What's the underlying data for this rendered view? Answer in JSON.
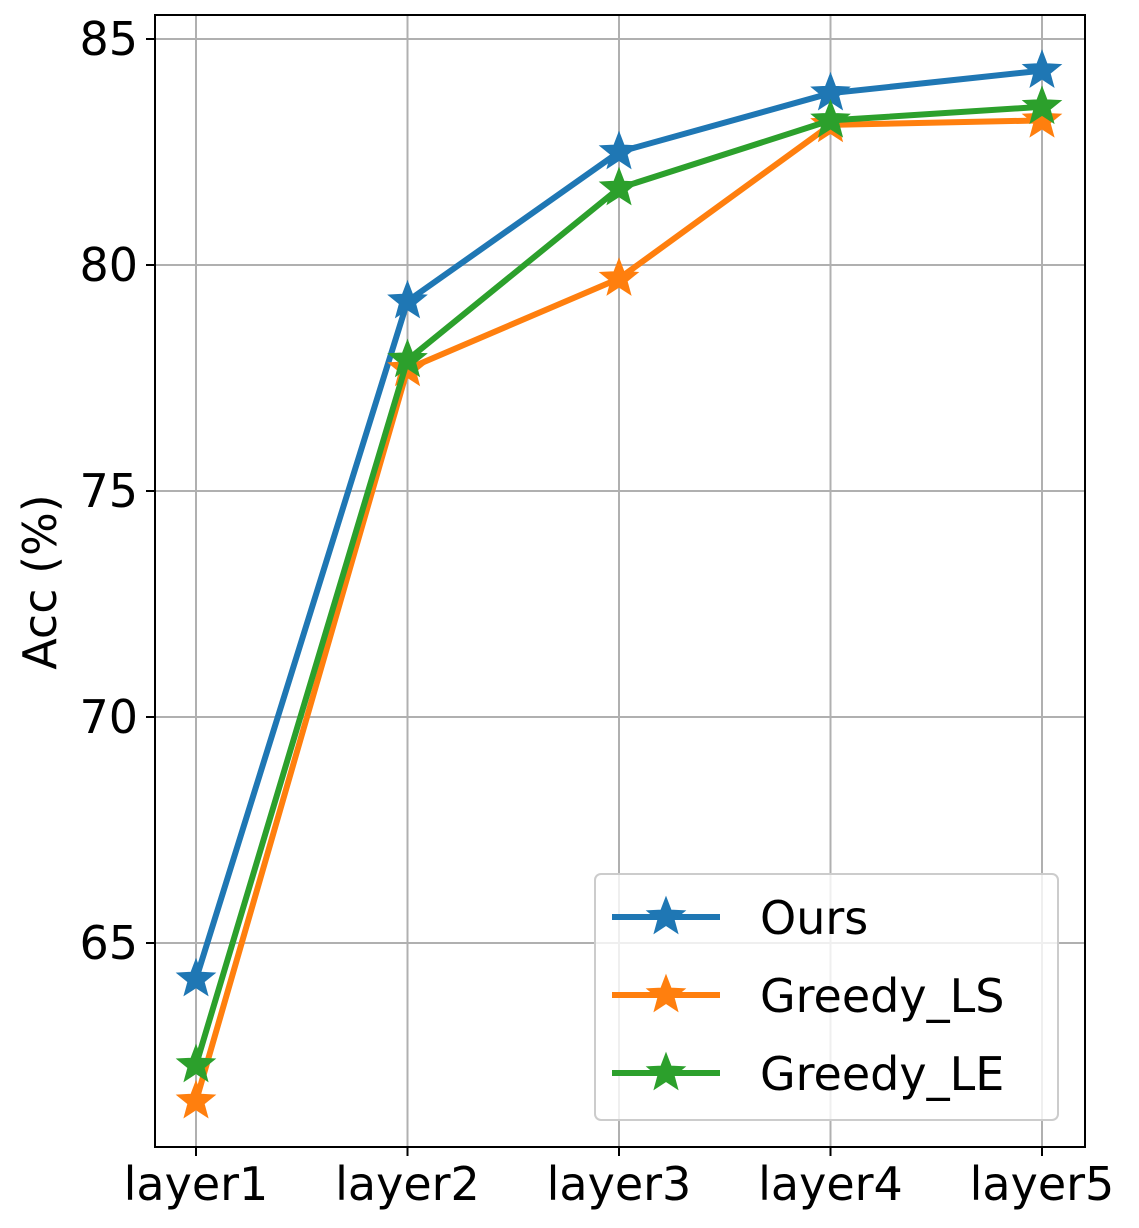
{
  "chart_data": {
    "type": "line",
    "categories": [
      "layer1",
      "layer2",
      "layer3",
      "layer4",
      "layer5"
    ],
    "ylabel": "Acc (%)",
    "xlabel": "",
    "ylim": [
      60.5,
      85.5
    ],
    "yticks": [
      65,
      70,
      75,
      80,
      85
    ],
    "grid": true,
    "legend_position": "lower-right",
    "marker": "star",
    "series": [
      {
        "name": "Ours",
        "color": "#1f77b4",
        "values": [
          64.2,
          79.2,
          82.5,
          83.8,
          84.3
        ]
      },
      {
        "name": "Greedy_LS",
        "color": "#ff7f0e",
        "values": [
          61.5,
          77.7,
          79.7,
          83.1,
          83.2
        ]
      },
      {
        "name": "Greedy_LE",
        "color": "#2ca02c",
        "values": [
          62.3,
          77.9,
          81.7,
          83.2,
          83.5
        ]
      }
    ]
  }
}
